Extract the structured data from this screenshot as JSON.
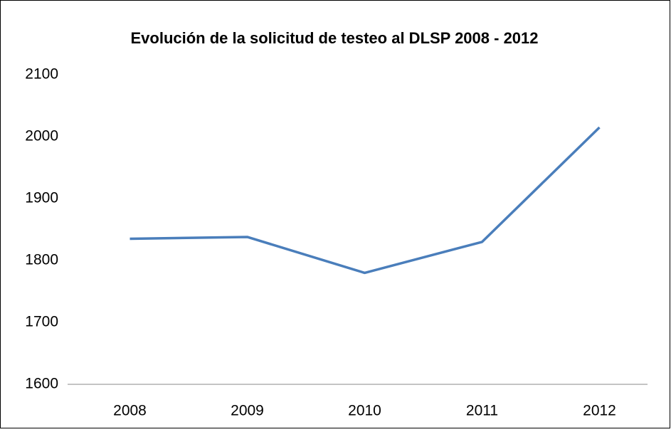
{
  "chart_data": {
    "type": "line",
    "title": "Evolución de la solicitud de testeo al DLSP 2008 - 2012",
    "categories": [
      "2008",
      "2009",
      "2010",
      "2011",
      "2012"
    ],
    "values": [
      1835,
      1838,
      1780,
      1830,
      2015
    ],
    "color": "#4a7ebb",
    "ylim": [
      1600,
      2100
    ],
    "yticks": [
      1600,
      1700,
      1800,
      1900,
      2000,
      2100
    ],
    "grid": false
  }
}
